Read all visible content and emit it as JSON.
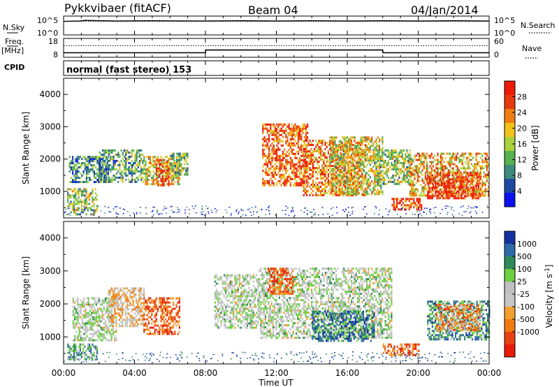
{
  "header": {
    "radar": "Pykkvibaer (fitACF)",
    "beam": "Beam 04",
    "date": "04/Jan/2014"
  },
  "noise_panel": {
    "left_label": "N.Sky",
    "left_ticks": [
      "10^5",
      "10^0"
    ],
    "right_ticks": [
      "10^5",
      "10^0"
    ],
    "right_label": "N.Search"
  },
  "freq_panel": {
    "label_top": "Freq.",
    "label_unit": "[MHz]",
    "left_ticks": [
      "18",
      "8"
    ],
    "right_ticks": [
      "60",
      "0"
    ],
    "right_label": "Nave"
  },
  "cpid_panel": {
    "label": "CPID",
    "text": "normal (fast stereo) 153"
  },
  "colors": {
    "power_scale": [
      "#0a10f0",
      "#1d4aa0",
      "#3c8a7c",
      "#58b050",
      "#a9d23c",
      "#f2c21a",
      "#ef7d12",
      "#e63a0c",
      "#ef1a08"
    ],
    "velocity_scale": [
      "#1530a0",
      "#2e6aa8",
      "#2f8a5a",
      "#6cd040",
      "#c0c0c0",
      "#c6c6c6",
      "#f2a030",
      "#ef7a10",
      "#e84010",
      "#e81a08"
    ]
  },
  "chart_data": [
    {
      "type": "line",
      "name": "noise",
      "title": "",
      "x_range_hours": [
        0,
        24
      ],
      "series": [
        {
          "name": "N.Sky",
          "style": "solid",
          "x": [
            0,
            0.9,
            1.2,
            3,
            5,
            8,
            10,
            12,
            14,
            16,
            18,
            20,
            22,
            24
          ],
          "y": [
            4.0,
            4.1,
            4.3,
            4.1,
            4.2,
            4.1,
            4.2,
            4.1,
            4.2,
            4.1,
            4.2,
            4.1,
            4.2,
            4.1
          ]
        },
        {
          "name": "N.Search",
          "style": "dotted",
          "x": [
            0,
            24
          ],
          "y": [
            4.0,
            4.0
          ]
        }
      ]
    },
    {
      "type": "line",
      "name": "frequency",
      "title": "",
      "x_range_hours": [
        0,
        24
      ],
      "left_axis": {
        "label": "Freq. [MHz]",
        "range": [
          8,
          18
        ]
      },
      "right_axis": {
        "label": "Nave",
        "range": [
          0,
          60
        ]
      },
      "series": [
        {
          "name": "Freq.",
          "style": "solid",
          "x": [
            0,
            8,
            8.01,
            18,
            18.01,
            24
          ],
          "y": [
            10.3,
            10.3,
            11.9,
            11.9,
            10.3,
            10.3
          ]
        },
        {
          "name": "Nave",
          "style": "dotted",
          "x": [
            0,
            24
          ],
          "y": [
            39,
            39
          ]
        }
      ]
    },
    {
      "type": "heatmap",
      "name": "power",
      "title": "",
      "xlabel": "",
      "ylabel": "Slant Range [km]",
      "xlim": [
        0,
        24
      ],
      "ylim": [
        180,
        4500
      ],
      "x_ticks": [
        "00:00",
        "04:00",
        "08:00",
        "12:00",
        "16:00",
        "20:00",
        "00:00"
      ],
      "y_ticks": [
        1000,
        2000,
        3000,
        4000
      ],
      "colorbar": {
        "label": "Power [dB]",
        "ticks": [
          4,
          8,
          12,
          16,
          20,
          24,
          28
        ],
        "range": [
          0,
          32
        ]
      },
      "regions": [
        {
          "x": [
            0.2,
            1.9
          ],
          "y": [
            300,
            1100
          ],
          "level": 0.45
        },
        {
          "x": [
            0.3,
            2.5
          ],
          "y": [
            1300,
            2100
          ],
          "level": 0.3
        },
        {
          "x": [
            2.0,
            4.5
          ],
          "y": [
            1300,
            2300
          ],
          "level": 0.35
        },
        {
          "x": [
            4.5,
            6.5
          ],
          "y": [
            1200,
            2100
          ],
          "level": 0.55
        },
        {
          "x": [
            5.2,
            5.9
          ],
          "y": [
            1200,
            2000
          ],
          "level": 0.85
        },
        {
          "x": [
            6.0,
            7.0
          ],
          "y": [
            1500,
            2200
          ],
          "level": 0.4
        },
        {
          "x": [
            11.2,
            13.8
          ],
          "y": [
            1200,
            3100
          ],
          "level": 0.8
        },
        {
          "x": [
            13.5,
            17.0
          ],
          "y": [
            900,
            2600
          ],
          "level": 0.75
        },
        {
          "x": [
            15.0,
            18.0
          ],
          "y": [
            900,
            2700
          ],
          "level": 0.55
        },
        {
          "x": [
            17.5,
            19.5
          ],
          "y": [
            1200,
            2300
          ],
          "level": 0.45
        },
        {
          "x": [
            18.5,
            20.2
          ],
          "y": [
            450,
            800
          ],
          "level": 0.85
        },
        {
          "x": [
            19.5,
            24.0
          ],
          "y": [
            900,
            2200
          ],
          "level": 0.65
        },
        {
          "x": [
            20.5,
            23.5
          ],
          "y": [
            800,
            1600
          ],
          "level": 0.92
        }
      ]
    },
    {
      "type": "heatmap",
      "name": "velocity",
      "title": "",
      "xlabel": "Time UT",
      "ylabel": "Slant Range [km]",
      "xlim": [
        0,
        24
      ],
      "ylim": [
        180,
        4500
      ],
      "x_ticks": [
        "00:00",
        "04:00",
        "08:00",
        "12:00",
        "16:00",
        "20:00",
        "00:00"
      ],
      "y_ticks": [
        1000,
        2000,
        3000,
        4000
      ],
      "colorbar": {
        "label": "Velocity [m s^-1]",
        "ticks": [
          "1000",
          "500",
          "100",
          "25",
          "-25",
          "-100",
          "-500",
          "-1000"
        ]
      },
      "regions": [
        {
          "x": [
            0.2,
            1.9
          ],
          "y": [
            350,
            800
          ],
          "level": 0.3
        },
        {
          "x": [
            0.5,
            3.0
          ],
          "y": [
            900,
            2200
          ],
          "level": 0.45
        },
        {
          "x": [
            2.5,
            4.5
          ],
          "y": [
            1300,
            2500
          ],
          "level": 0.6
        },
        {
          "x": [
            4.5,
            6.5
          ],
          "y": [
            1100,
            2200
          ],
          "level": 0.8
        },
        {
          "x": [
            8.5,
            11.0
          ],
          "y": [
            1300,
            2900
          ],
          "level": 0.45
        },
        {
          "x": [
            11.0,
            18.5
          ],
          "y": [
            1000,
            3100
          ],
          "level": 0.45
        },
        {
          "x": [
            11.5,
            13.0
          ],
          "y": [
            2300,
            3100
          ],
          "level": 0.8
        },
        {
          "x": [
            14.0,
            17.5
          ],
          "y": [
            900,
            1800
          ],
          "level": 0.2
        },
        {
          "x": [
            18.0,
            20.0
          ],
          "y": [
            450,
            800
          ],
          "level": 0.8
        },
        {
          "x": [
            20.5,
            24.0
          ],
          "y": [
            900,
            2100
          ],
          "level": 0.25
        },
        {
          "x": [
            21.0,
            23.5
          ],
          "y": [
            1200,
            2000
          ],
          "level": 0.7
        }
      ]
    }
  ]
}
